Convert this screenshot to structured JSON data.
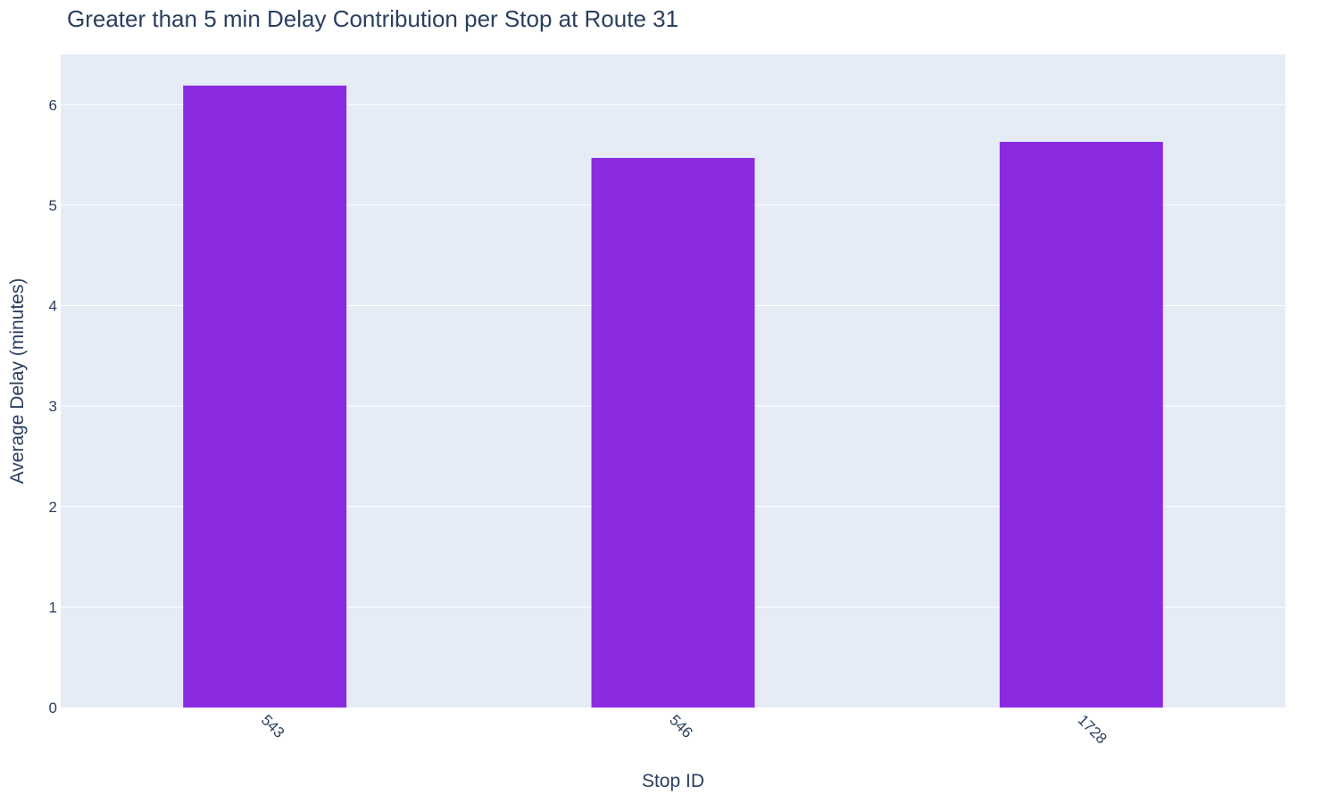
{
  "chart_data": {
    "type": "bar",
    "title": "Greater than 5 min Delay Contribution per Stop at Route 31",
    "xlabel": "Stop ID",
    "ylabel": "Average Delay (minutes)",
    "categories": [
      "543",
      "546",
      "1728"
    ],
    "values": [
      6.19,
      5.47,
      5.63
    ],
    "ylim": [
      0,
      6.5
    ],
    "yticks": [
      "0",
      "1",
      "2",
      "3",
      "4",
      "5",
      "6"
    ],
    "grid": true,
    "x_tick_rotation": 45,
    "colors": {
      "bar": "#8a2be2",
      "plot_background": "#e5ecf6",
      "grid": "#ffffff",
      "text": "#2a3f5f"
    }
  }
}
